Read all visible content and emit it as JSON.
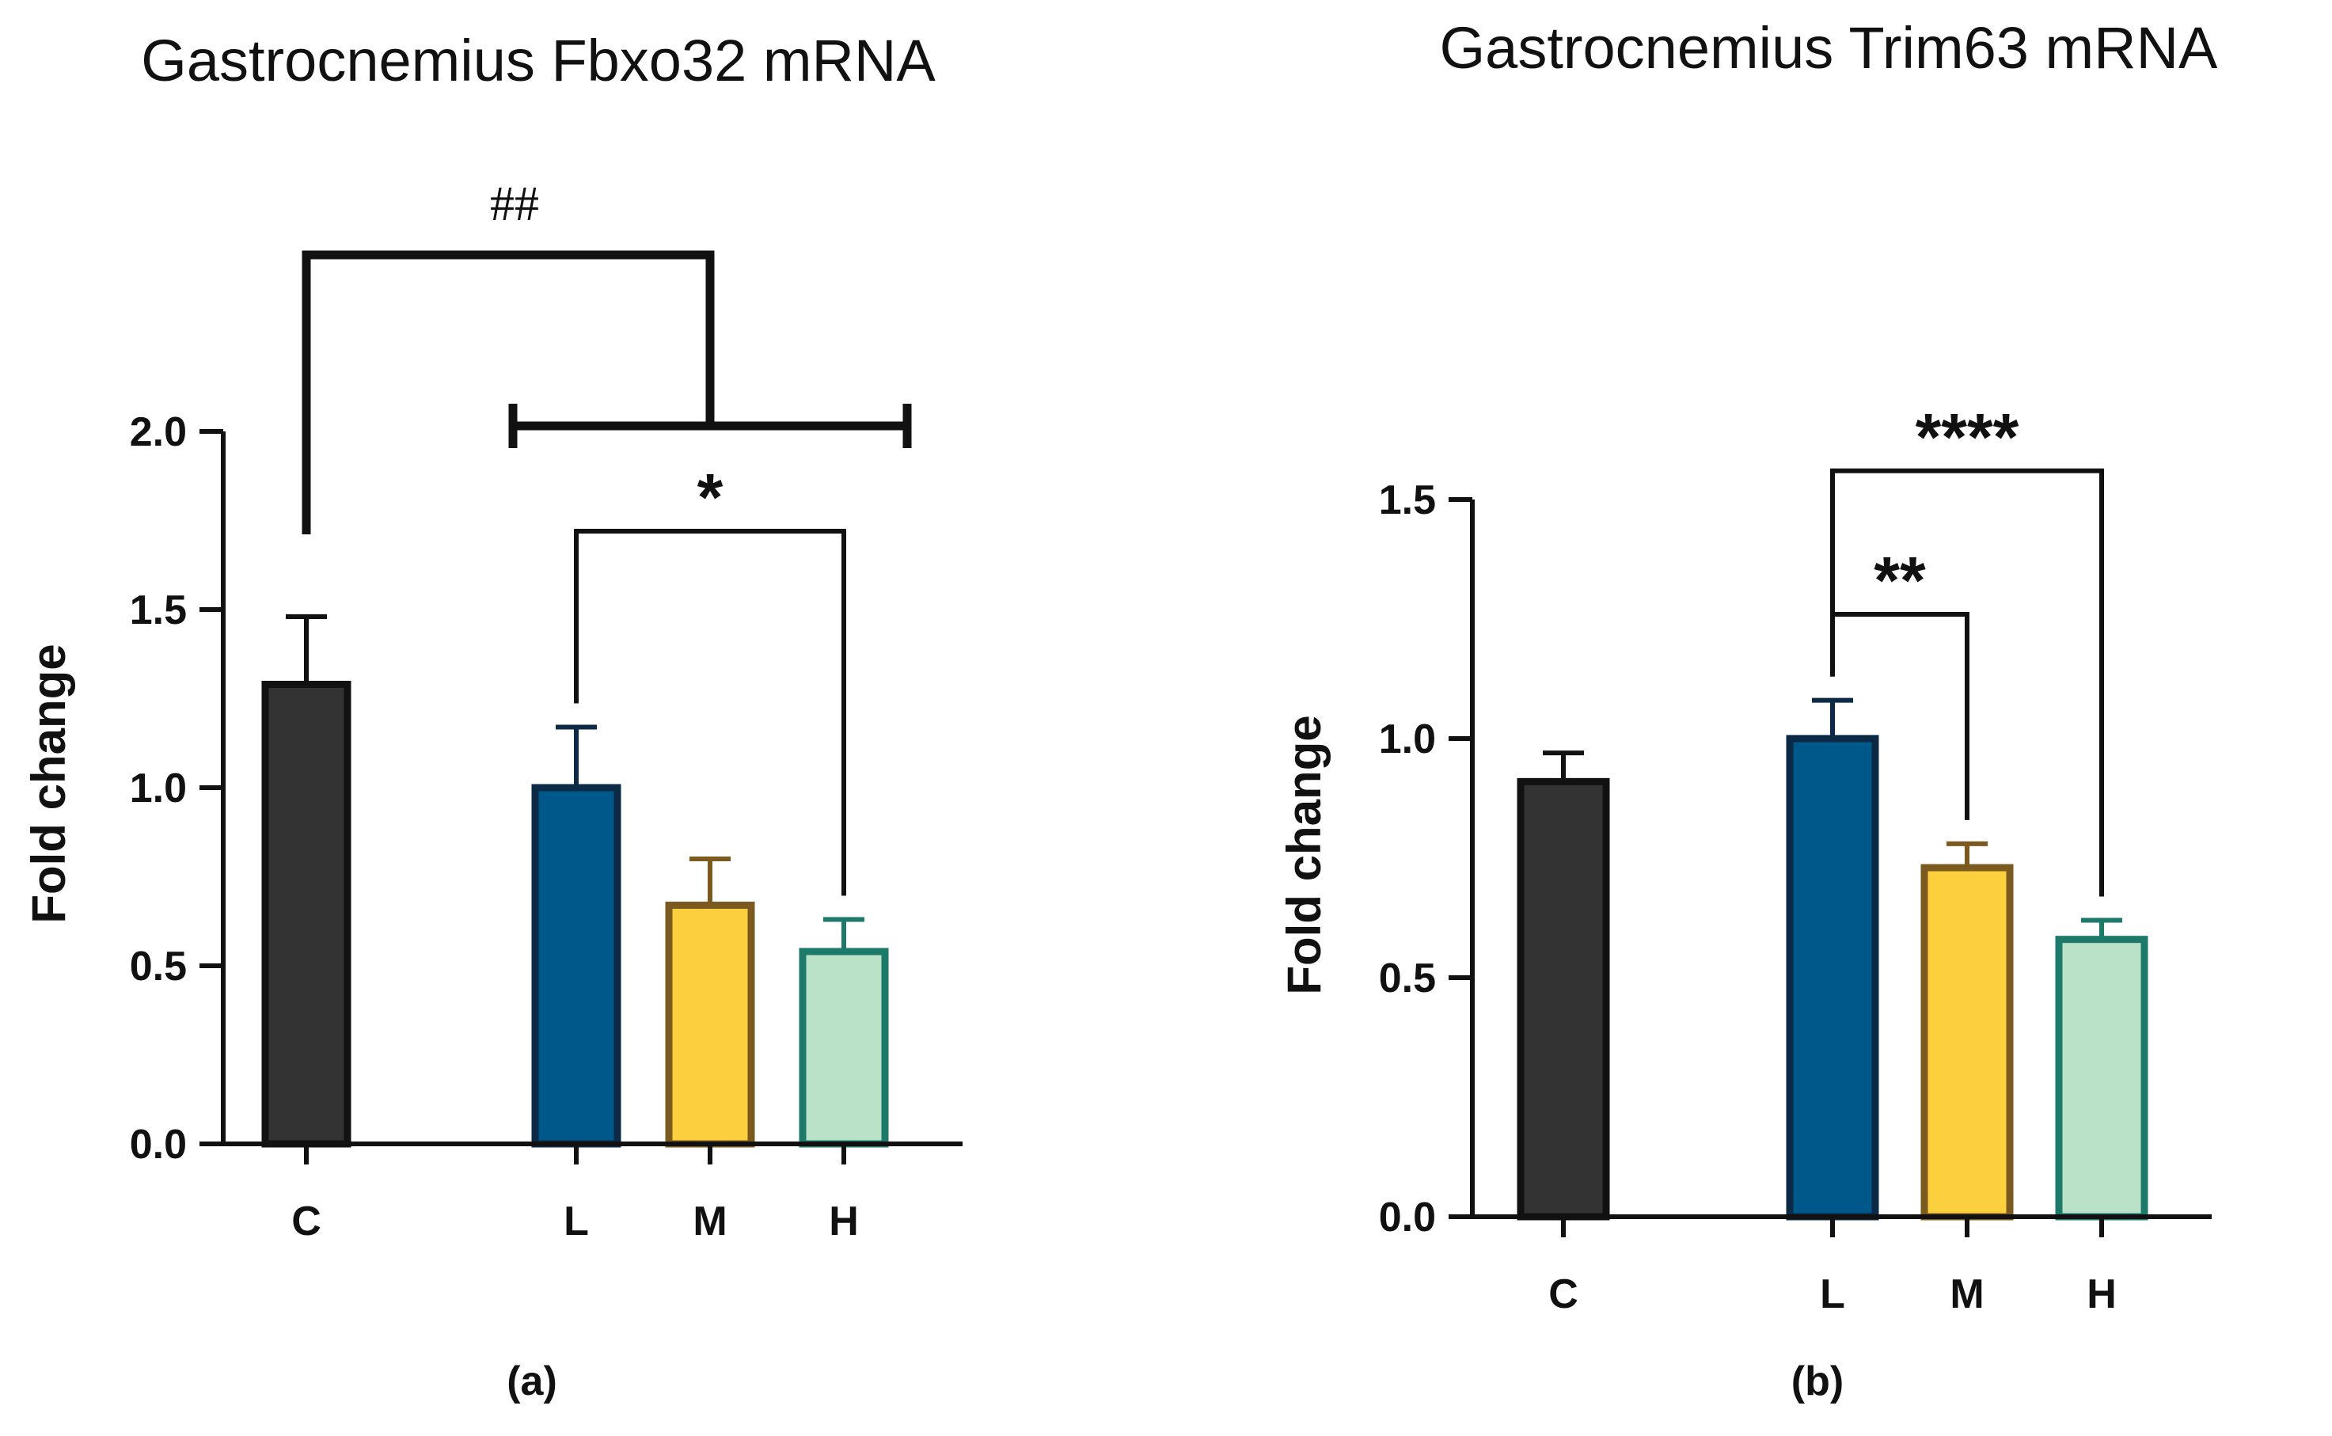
{
  "chart_data": [
    {
      "type": "bar",
      "title": "Gastrocnemius Fbxo32 mRNA",
      "panel_label": "(a)",
      "xlabel": "",
      "ylabel": "Fold change",
      "ylim": [
        0,
        2.0
      ],
      "yticks": [
        0.0,
        0.5,
        1.0,
        1.5,
        2.0
      ],
      "ytick_labels": [
        "0.0",
        "0.5",
        "1.0",
        "1.5",
        "2.0"
      ],
      "categories": [
        "C",
        "L",
        "M",
        "H"
      ],
      "values": [
        1.29,
        1.0,
        0.67,
        0.54
      ],
      "errors": [
        0.19,
        0.17,
        0.13,
        0.09
      ],
      "colors": [
        "#333333",
        "#00578a",
        "#fccf3f",
        "#b9e2c8"
      ],
      "edge_colors": [
        "#111111",
        "#0c2a45",
        "#7a5a1e",
        "#1d7a6a"
      ],
      "annotations": [
        {
          "text": "##",
          "from": "C",
          "to": [
            "L",
            "H"
          ],
          "y": 2.5
        },
        {
          "text": "*",
          "from": "L",
          "to": "H",
          "y": 1.72
        }
      ]
    },
    {
      "type": "bar",
      "title": "Gastrocnemius Trim63 mRNA",
      "panel_label": "(b)",
      "xlabel": "",
      "ylabel": "Fold change",
      "ylim": [
        0,
        1.5
      ],
      "yticks": [
        0.0,
        0.5,
        1.0,
        1.5
      ],
      "ytick_labels": [
        "0.0",
        "0.5",
        "1.0",
        "1.5"
      ],
      "categories": [
        "C",
        "L",
        "M",
        "H"
      ],
      "values": [
        0.91,
        1.0,
        0.73,
        0.58
      ],
      "errors": [
        0.06,
        0.08,
        0.05,
        0.04
      ],
      "colors": [
        "#333333",
        "#00578a",
        "#fccf3f",
        "#b9e2c8"
      ],
      "edge_colors": [
        "#111111",
        "#0c2a45",
        "#7a5a1e",
        "#1d7a6a"
      ],
      "annotations": [
        {
          "text": "****",
          "from": "L",
          "to": "H",
          "y": 1.56
        },
        {
          "text": "**",
          "from": "L",
          "to": "M",
          "y": 1.26
        }
      ]
    }
  ]
}
